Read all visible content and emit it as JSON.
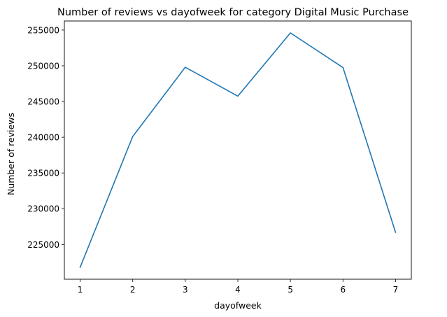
{
  "chart_data": {
    "type": "line",
    "title": "Number of reviews vs dayofweek for category Digital Music Purchase",
    "xlabel": "dayofweek",
    "ylabel": "Number of reviews",
    "x": [
      1,
      2,
      3,
      4,
      5,
      6,
      7
    ],
    "series": [
      {
        "values": [
          221800,
          240100,
          249800,
          245750,
          254600,
          249750,
          226700
        ],
        "color": "#1f77b4"
      }
    ],
    "xticks": [
      "1",
      "2",
      "3",
      "4",
      "5",
      "6",
      "7"
    ],
    "yticks": [
      "225000",
      "230000",
      "235000",
      "240000",
      "245000",
      "250000",
      "255000"
    ],
    "xlim": [
      0.7,
      7.3
    ],
    "ylim": [
      220135,
      256265
    ],
    "grid": false,
    "legend": "none"
  }
}
